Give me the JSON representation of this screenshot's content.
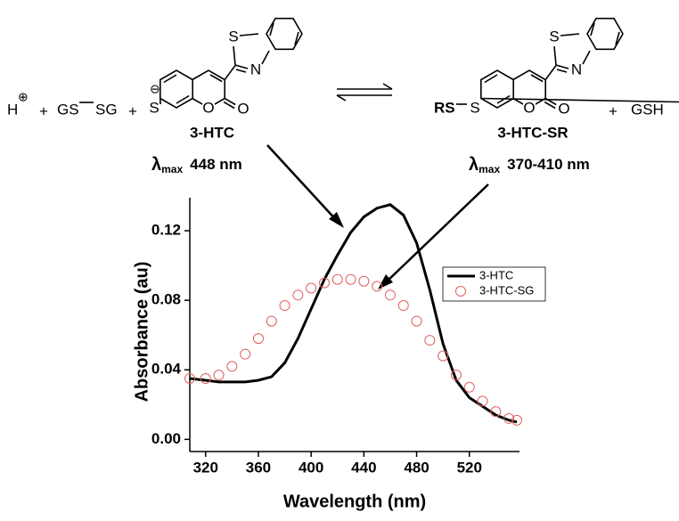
{
  "scheme": {
    "proton": "H",
    "proton_charge": "⊕",
    "plus": "+",
    "disulfide_left": "GS",
    "disulfide_right": "SG",
    "thiolate_S": "S",
    "thiolate_charge": "⊖",
    "atoms": {
      "S": "S",
      "N": "N",
      "O": "O"
    },
    "reactant_name": "3-HTC",
    "reactant_lambda": {
      "symbol": "λ",
      "sub": "max",
      "value": "448 nm"
    },
    "product_RS": "RS",
    "product_S": "S",
    "product_name": "3-HTC-SR",
    "product_lambda": {
      "symbol": "λ",
      "sub": "max",
      "value": "370-410 nm"
    },
    "byproduct": "GSH"
  },
  "chart_data": {
    "type": "line",
    "x_label": "Wavelength (nm)",
    "y_label": "Absorbance (au)",
    "x": [
      308,
      320,
      330,
      340,
      350,
      360,
      370,
      380,
      390,
      400,
      410,
      420,
      430,
      440,
      450,
      460,
      470,
      480,
      490,
      500,
      510,
      520,
      530,
      540,
      550,
      556
    ],
    "series": [
      {
        "name": "3-HTC",
        "color": "#000000",
        "style": "line",
        "values": [
          0.035,
          0.034,
          0.033,
          0.033,
          0.033,
          0.034,
          0.036,
          0.044,
          0.058,
          0.075,
          0.092,
          0.106,
          0.119,
          0.128,
          0.133,
          0.135,
          0.129,
          0.113,
          0.086,
          0.055,
          0.034,
          0.024,
          0.019,
          0.014,
          0.011,
          0.01
        ]
      },
      {
        "name": "3-HTC-SG",
        "color": "#e06060",
        "style": "marker",
        "values": [
          0.035,
          0.035,
          0.037,
          0.042,
          0.049,
          0.058,
          0.068,
          0.077,
          0.083,
          0.087,
          0.09,
          0.092,
          0.092,
          0.091,
          0.088,
          0.083,
          0.077,
          0.068,
          0.057,
          0.048,
          0.037,
          0.03,
          0.022,
          0.016,
          0.012,
          0.011
        ]
      }
    ],
    "xlim": [
      308,
      558
    ],
    "ylim": [
      -0.007,
      0.139
    ],
    "xticks": [
      320,
      360,
      400,
      440,
      480,
      520
    ],
    "yticks": [
      {
        "value": 0,
        "label": "0.00"
      },
      0.04,
      0.08,
      0.12
    ],
    "legend": "right"
  }
}
